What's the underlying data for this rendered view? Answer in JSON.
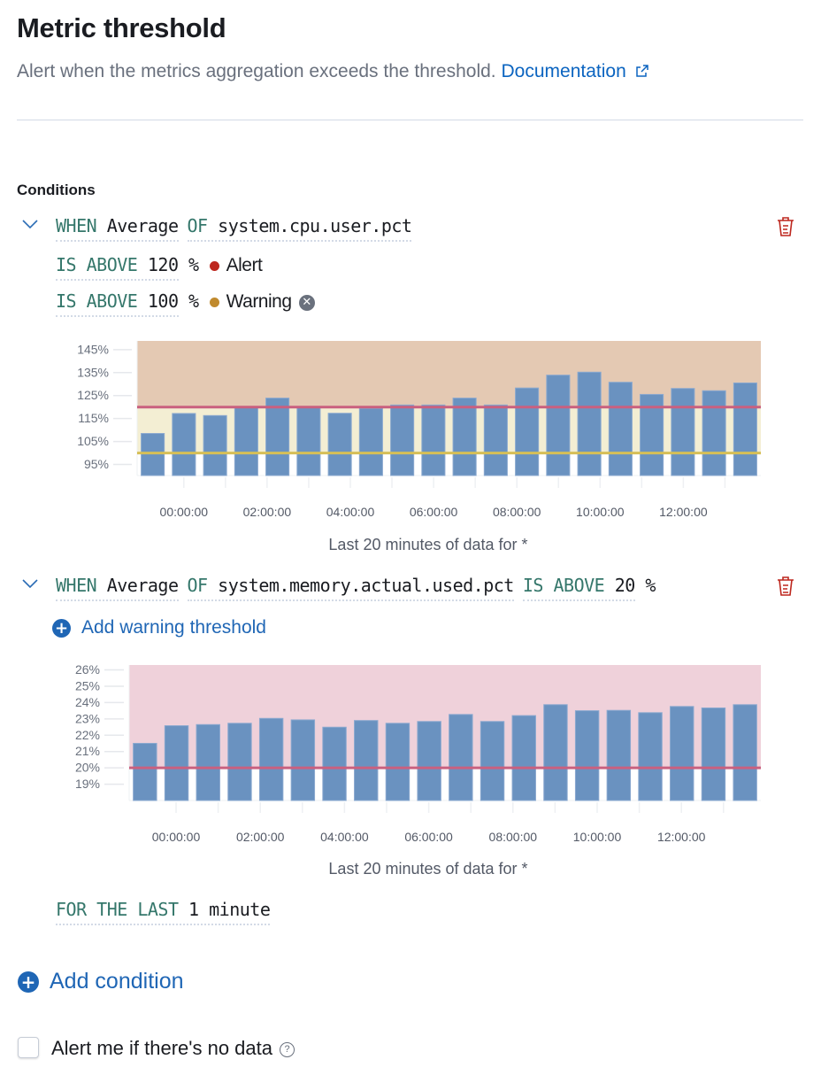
{
  "header": {
    "title": "Metric threshold",
    "description": "Alert when the metrics aggregation exceeds the threshold.",
    "doc_link": "Documentation",
    "doc_icon": "external-link-icon"
  },
  "conditions_label": "Conditions",
  "condition1": {
    "when": "WHEN",
    "agg": "Average",
    "of": "OF",
    "field": "system.cpu.user.pct",
    "alert": {
      "op": "IS ABOVE",
      "value": "120",
      "unit": "%",
      "label": "Alert",
      "color": "#bd271e"
    },
    "warning": {
      "op": "IS ABOVE",
      "value": "100",
      "unit": "%",
      "label": "Warning",
      "color": "#c08a2e"
    },
    "caption": "Last 20 minutes of data for *"
  },
  "condition2": {
    "when": "WHEN",
    "agg": "Average",
    "of": "OF",
    "field": "system.memory.actual.used.pct",
    "op": "IS ABOVE",
    "value": "20",
    "unit": "%",
    "add_warning": "Add warning threshold",
    "caption": "Last 20 minutes of data for *"
  },
  "for_the_last": {
    "kw": "FOR THE LAST",
    "value": "1 minute"
  },
  "add_condition": "Add condition",
  "no_data": {
    "label": "Alert me if there's no data",
    "checked": false
  },
  "colors": {
    "bar": "#6a92c0",
    "alert_line": "#c9607f",
    "warning_line": "#d6bf57",
    "alert_zone": "#e4c9b3",
    "warning_zone": "#f3eed3",
    "alert_zone2": "#efd1da",
    "accent": "#1f66b5"
  },
  "chart_data": [
    {
      "type": "bar",
      "ylim": [
        90.2,
        148.8
      ],
      "yticks": [
        "95%",
        "105%",
        "115%",
        "125%",
        "135%",
        "145%"
      ],
      "ytick_values": [
        95,
        105,
        115,
        125,
        135,
        145
      ],
      "xticks": [
        "00:00:00",
        "02:00:00",
        "04:00:00",
        "06:00:00",
        "08:00:00",
        "10:00:00",
        "12:00:00"
      ],
      "values": [
        108.5,
        117.2,
        116.3,
        120,
        123.9,
        120,
        117.3,
        119.4,
        120.9,
        120.9,
        123.9,
        120.9,
        128.3,
        133.9,
        135.2,
        130.8,
        125.5,
        128.1,
        127.1,
        130.5
      ],
      "thresholds": {
        "alert": 120,
        "warning": 100
      },
      "xlabel": "Last 20 minutes of data for *"
    },
    {
      "type": "bar",
      "ylim": [
        18,
        26.3
      ],
      "yticks": [
        "19%",
        "20%",
        "21%",
        "22%",
        "23%",
        "24%",
        "25%",
        "26%"
      ],
      "ytick_values": [
        19,
        20,
        21,
        22,
        23,
        24,
        25,
        26
      ],
      "xticks": [
        "00:00:00",
        "02:00:00",
        "04:00:00",
        "06:00:00",
        "08:00:00",
        "10:00:00",
        "12:00:00"
      ],
      "values": [
        21.5,
        22.58,
        22.65,
        22.73,
        23.03,
        22.94,
        22.49,
        22.9,
        22.73,
        22.84,
        23.27,
        22.84,
        23.2,
        23.87,
        23.5,
        23.52,
        23.38,
        23.76,
        23.67,
        23.87
      ],
      "thresholds": {
        "alert": 20
      },
      "xlabel": "Last 20 minutes of data for *"
    }
  ]
}
